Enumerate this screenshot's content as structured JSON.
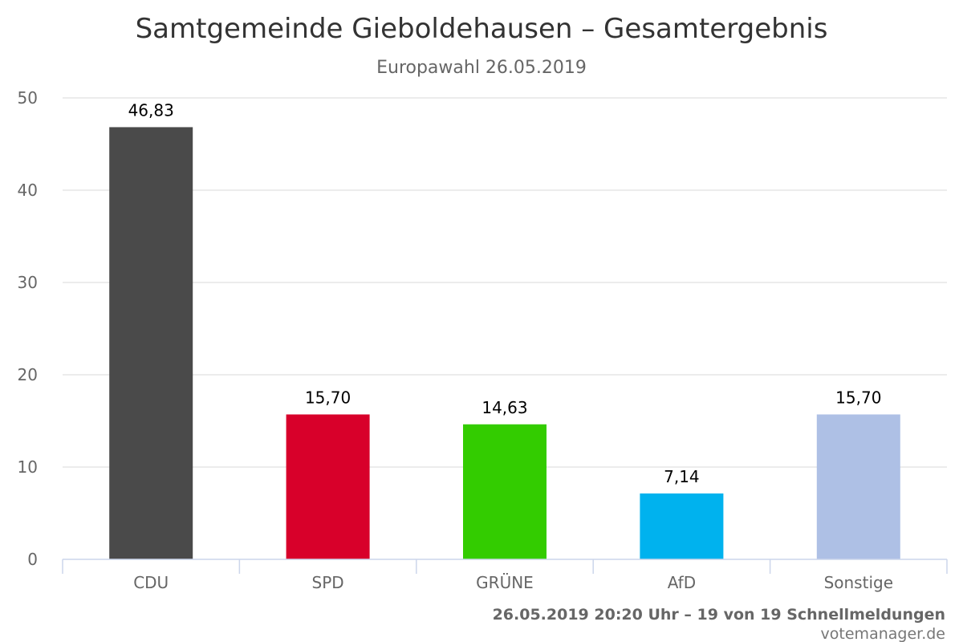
{
  "chart_data": {
    "type": "bar",
    "title": "Samtgemeinde Gieboldehausen – Gesamtergebnis",
    "subtitle": "Europawahl 26.05.2019",
    "categories": [
      "CDU",
      "SPD",
      "GRÜNE",
      "AfD",
      "Sonstige"
    ],
    "values": [
      46.83,
      15.7,
      14.63,
      7.14,
      15.7
    ],
    "data_labels": [
      "46,83",
      "15,70",
      "14,63",
      "7,14",
      "15,70"
    ],
    "colors": [
      "#4a4a4a",
      "#d8002a",
      "#33cc00",
      "#00b2ee",
      "#aec0e5"
    ],
    "ylim": [
      0,
      50
    ],
    "yticks": [
      "0",
      "10",
      "20",
      "30",
      "40",
      "50"
    ],
    "ytick_values": [
      0,
      10,
      20,
      30,
      40,
      50
    ],
    "grid": true,
    "xlabel": "",
    "ylabel": ""
  },
  "footer": {
    "status": "26.05.2019 20:20 Uhr – 19 von 19 Schnellmeldungen",
    "credit": "votemanager.de"
  }
}
